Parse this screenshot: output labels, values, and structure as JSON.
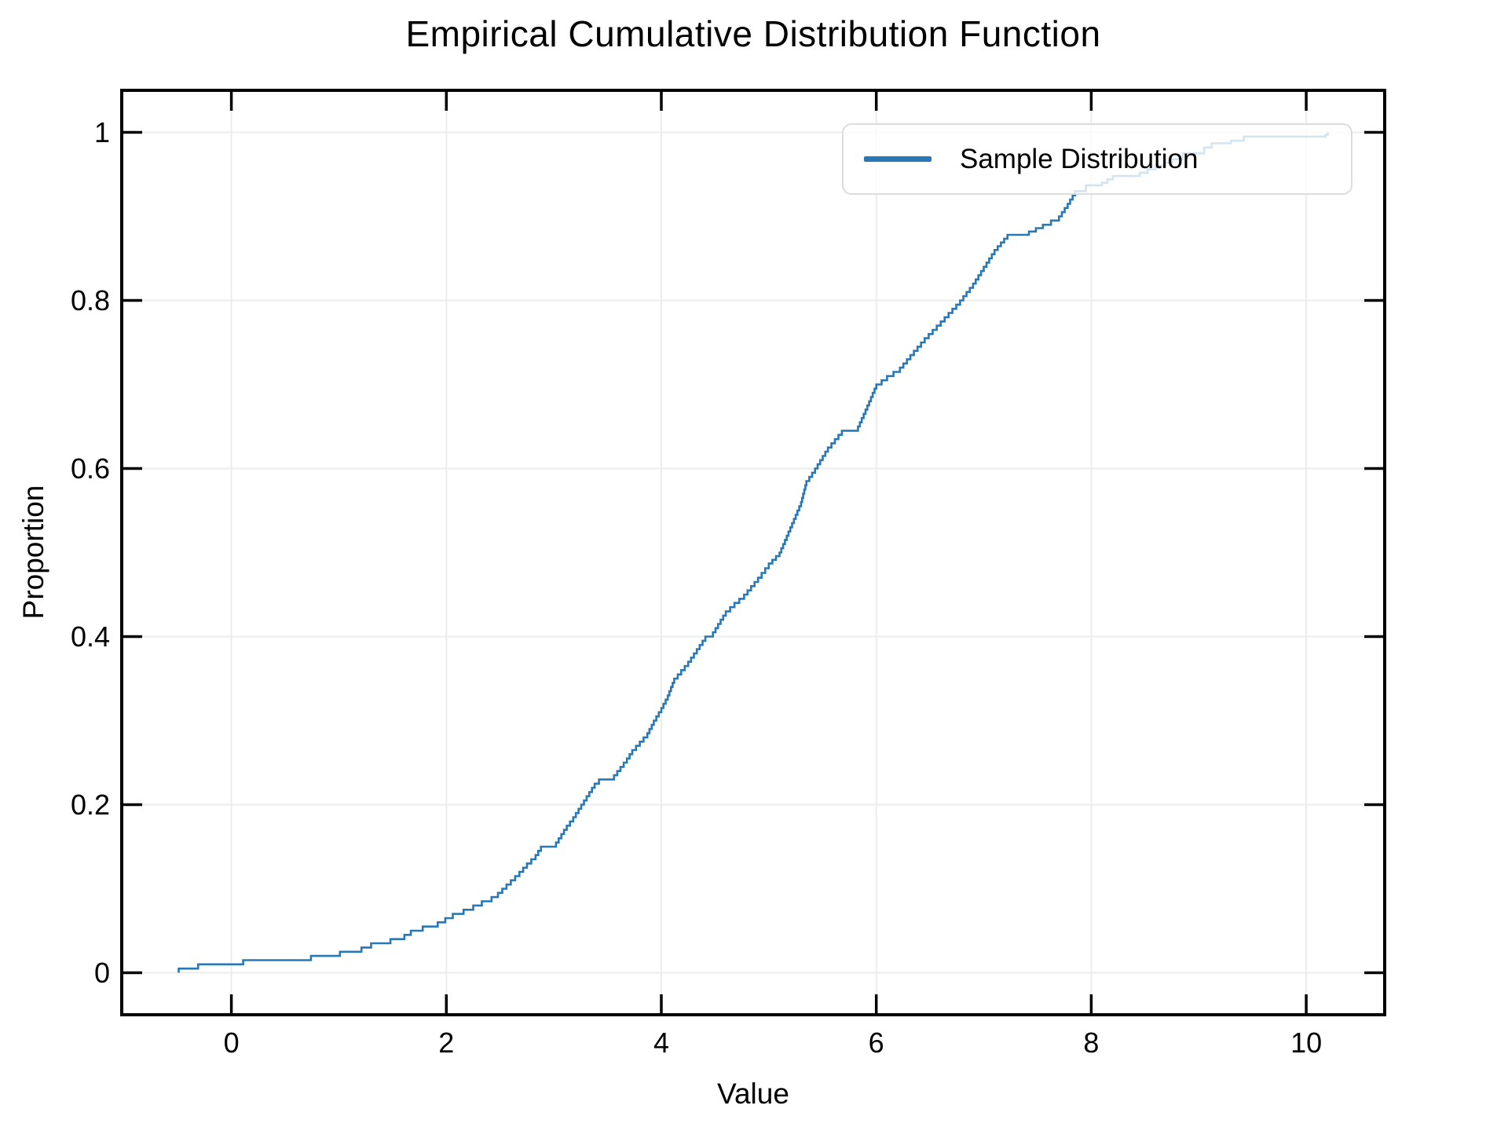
{
  "chart_data": {
    "type": "line",
    "subtype": "ecdf-step",
    "title": "Empirical Cumulative Distribution Function",
    "xlabel": "Value",
    "ylabel": "Proportion",
    "legend": {
      "label": "Sample Distribution",
      "position": "top-right"
    },
    "xlim": [
      -1.02,
      10.73
    ],
    "ylim": [
      -0.05,
      1.05
    ],
    "xticks": [
      0,
      2,
      4,
      6,
      8,
      10
    ],
    "xtick_labels": [
      "0",
      "2",
      "4",
      "6",
      "8",
      "10"
    ],
    "yticks": [
      0,
      0.2,
      0.4,
      0.6,
      0.8,
      1
    ],
    "ytick_labels": [
      "0",
      "0.2",
      "0.4",
      "0.6",
      "0.8",
      "1"
    ],
    "grid": true,
    "step_size": 0.005,
    "n_samples": 200,
    "colors": {
      "line": "#2878b5",
      "grid": "#ececec",
      "frame": "#000000",
      "tick": "#000000",
      "legend_border": "#dcdcdc",
      "text": "#000000"
    },
    "points": [
      [
        -0.49,
        0.005
      ],
      [
        -0.31,
        0.01
      ],
      [
        0.11,
        0.015
      ],
      [
        0.74,
        0.02
      ],
      [
        1.01,
        0.025
      ],
      [
        1.21,
        0.03
      ],
      [
        1.3,
        0.035
      ],
      [
        1.48,
        0.04
      ],
      [
        1.61,
        0.045
      ],
      [
        1.67,
        0.05
      ],
      [
        1.78,
        0.055
      ],
      [
        1.92,
        0.06
      ],
      [
        1.99,
        0.065
      ],
      [
        2.06,
        0.07
      ],
      [
        2.16,
        0.075
      ],
      [
        2.25,
        0.08
      ],
      [
        2.33,
        0.085
      ],
      [
        2.42,
        0.09
      ],
      [
        2.48,
        0.095
      ],
      [
        2.52,
        0.1
      ],
      [
        2.6,
        0.11
      ],
      [
        2.68,
        0.12
      ],
      [
        2.75,
        0.13
      ],
      [
        2.83,
        0.14
      ],
      [
        2.88,
        0.15
      ],
      [
        3.02,
        0.155
      ],
      [
        3.07,
        0.165
      ],
      [
        3.12,
        0.175
      ],
      [
        3.18,
        0.185
      ],
      [
        3.23,
        0.195
      ],
      [
        3.28,
        0.205
      ],
      [
        3.33,
        0.215
      ],
      [
        3.38,
        0.225
      ],
      [
        3.42,
        0.23
      ],
      [
        3.56,
        0.235
      ],
      [
        3.62,
        0.245
      ],
      [
        3.68,
        0.255
      ],
      [
        3.73,
        0.265
      ],
      [
        3.8,
        0.275
      ],
      [
        3.87,
        0.285
      ],
      [
        3.93,
        0.3
      ],
      [
        4.0,
        0.315
      ],
      [
        4.06,
        0.33
      ],
      [
        4.12,
        0.35
      ],
      [
        4.25,
        0.37
      ],
      [
        4.33,
        0.385
      ],
      [
        4.41,
        0.4
      ],
      [
        4.48,
        0.405
      ],
      [
        4.6,
        0.43
      ],
      [
        4.68,
        0.44
      ],
      [
        4.77,
        0.45
      ],
      [
        4.9,
        0.47
      ],
      [
        5.0,
        0.487
      ],
      [
        5.1,
        0.5
      ],
      [
        5.2,
        0.53
      ],
      [
        5.3,
        0.56
      ],
      [
        5.35,
        0.585
      ],
      [
        5.43,
        0.6
      ],
      [
        5.55,
        0.625
      ],
      [
        5.68,
        0.645
      ],
      [
        5.83,
        0.65
      ],
      [
        5.9,
        0.67
      ],
      [
        6.0,
        0.7
      ],
      [
        6.1,
        0.71
      ],
      [
        6.22,
        0.72
      ],
      [
        6.35,
        0.74
      ],
      [
        6.45,
        0.755
      ],
      [
        6.6,
        0.775
      ],
      [
        6.78,
        0.8
      ],
      [
        6.9,
        0.82
      ],
      [
        7.0,
        0.84
      ],
      [
        7.1,
        0.86
      ],
      [
        7.22,
        0.878
      ],
      [
        7.42,
        0.882
      ],
      [
        7.55,
        0.89
      ],
      [
        7.7,
        0.9
      ],
      [
        7.78,
        0.915
      ],
      [
        7.85,
        0.93
      ],
      [
        7.95,
        0.937
      ],
      [
        8.1,
        0.94
      ],
      [
        8.2,
        0.948
      ],
      [
        8.45,
        0.952
      ],
      [
        8.6,
        0.96
      ],
      [
        8.75,
        0.968
      ],
      [
        8.85,
        0.975
      ],
      [
        9.05,
        0.982
      ],
      [
        9.12,
        0.987
      ],
      [
        9.3,
        0.99
      ],
      [
        9.42,
        0.995
      ],
      [
        10.18,
        0.997
      ],
      [
        10.2,
        1.0
      ]
    ]
  }
}
